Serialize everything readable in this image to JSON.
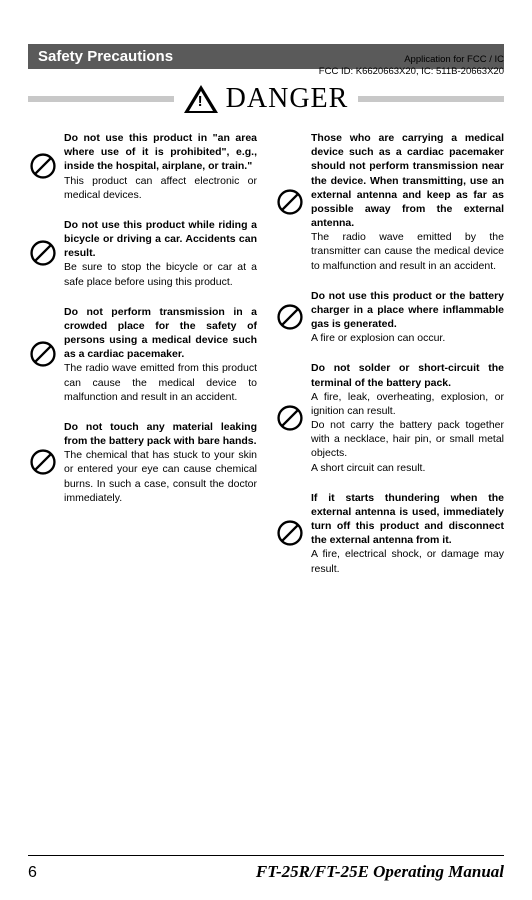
{
  "meta": {
    "line1": "Application for FCC / IC",
    "line2": "FCC ID: K6620663X20, IC: 511B-20663X20"
  },
  "header": "Safety Precautions",
  "danger": "DANGER",
  "left": [
    {
      "bold": "Do not use this product in \"an area where use of it is prohibited\", e.g., inside the hospital, airplane, or train.\"",
      "body": "This product can affect electronic or medical devices."
    },
    {
      "bold": "Do not use this product while riding a bicycle or driving a car. Accidents can result.",
      "body": "Be sure to stop the bicycle or car at a safe place before using this product."
    },
    {
      "bold": "Do not perform transmission in a crowded place for the safety of persons using a medical device such as a cardiac pacemaker.",
      "body": "The radio wave emitted from this product can cause the medical device to malfunction and result in an accident."
    },
    {
      "bold": "Do not touch any material leaking from the battery pack with bare hands.",
      "body": "The chemical that has stuck to your skin or entered your eye can cause chemical burns. In such a case, consult the doctor immediately."
    }
  ],
  "right": [
    {
      "bold": "Those who are carrying a medical device such as a cardiac pacemaker should not perform transmission near the device. When transmitting, use an external antenna and keep as far as possible away from the external antenna.",
      "body": "The radio wave emitted by the transmitter can cause the medical device to malfunction and result in an accident."
    },
    {
      "bold": "Do not use this product or the battery charger in a place where inflammable gas is generated.",
      "body": "A fire or explosion can occur."
    },
    {
      "bold": "Do not solder or short-circuit the terminal of the battery pack.",
      "body": "A fire, leak, overheating, explosion, or ignition can result.\nDo not carry the battery pack together with a necklace, hair pin, or small metal objects.\nA short circuit can result."
    },
    {
      "bold": "If it starts thundering when the external antenna is used, immediately turn off this product and disconnect the external antenna from it.",
      "body": "A fire, electrical shock, or damage may result."
    }
  ],
  "footer": {
    "page": "6",
    "title": "FT-25R/FT-25E Operating Manual"
  }
}
